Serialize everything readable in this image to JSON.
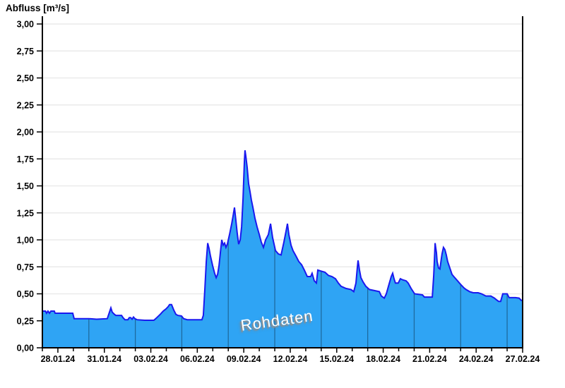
{
  "chart_data": {
    "type": "area",
    "title": "Abfluss [m³/s]",
    "ylabel": "Abfluss [m³/s]",
    "watermark": "Rohdaten",
    "grid": true,
    "legend_position": "none",
    "ylim": [
      0.0,
      3.0
    ],
    "ytick_step": 0.25,
    "y_tick_labels": [
      "0,00",
      "0,25",
      "0,50",
      "0,75",
      "1,00",
      "1,25",
      "1,50",
      "1,75",
      "2,00",
      "2,25",
      "2,50",
      "2,75",
      "3,00"
    ],
    "x_axis": {
      "start_date": "27.01.24",
      "end_date": "27.02.24",
      "span_days": 31,
      "minor_tick_every_days": 1,
      "labels": [
        {
          "day": 1,
          "label": "28.01.24"
        },
        {
          "day": 4,
          "label": "31.01.24"
        },
        {
          "day": 7,
          "label": "03.02.24"
        },
        {
          "day": 10,
          "label": "06.02.24"
        },
        {
          "day": 13,
          "label": "09.02.24"
        },
        {
          "day": 16,
          "label": "12.02.24"
        },
        {
          "day": 19,
          "label": "15.02.24"
        },
        {
          "day": 22,
          "label": "18.02.24"
        },
        {
          "day": 25,
          "label": "21.02.24"
        },
        {
          "day": 28,
          "label": "24.02.24"
        },
        {
          "day": 31,
          "label": "27.02.24"
        }
      ],
      "vertical_gridline_days": [
        3,
        6,
        9,
        12,
        15,
        18,
        21,
        24,
        27,
        30
      ]
    },
    "series": [
      {
        "name": "Rohdaten",
        "unit": "m³/s",
        "points": [
          [
            0,
            0.34
          ],
          [
            0.2,
            0.34
          ],
          [
            0.27,
            0.32
          ],
          [
            0.36,
            0.34
          ],
          [
            0.46,
            0.32
          ],
          [
            0.55,
            0.34
          ],
          [
            0.77,
            0.34
          ],
          [
            0.82,
            0.32
          ],
          [
            1.4,
            0.32
          ],
          [
            1.96,
            0.32
          ],
          [
            2.05,
            0.27
          ],
          [
            3.0,
            0.27
          ],
          [
            3.5,
            0.265
          ],
          [
            4.19,
            0.27
          ],
          [
            4.33,
            0.33
          ],
          [
            4.42,
            0.37
          ],
          [
            4.51,
            0.33
          ],
          [
            4.65,
            0.31
          ],
          [
            4.74,
            0.3
          ],
          [
            5.11,
            0.3
          ],
          [
            5.2,
            0.28
          ],
          [
            5.33,
            0.26
          ],
          [
            5.52,
            0.26
          ],
          [
            5.61,
            0.28
          ],
          [
            5.7,
            0.28
          ],
          [
            5.79,
            0.265
          ],
          [
            5.88,
            0.285
          ],
          [
            5.97,
            0.27
          ],
          [
            6.11,
            0.26
          ],
          [
            6.6,
            0.255
          ],
          [
            7.2,
            0.255
          ],
          [
            7.39,
            0.28
          ],
          [
            7.61,
            0.31
          ],
          [
            7.8,
            0.34
          ],
          [
            7.98,
            0.36
          ],
          [
            8.11,
            0.38
          ],
          [
            8.21,
            0.4
          ],
          [
            8.34,
            0.4
          ],
          [
            8.48,
            0.35
          ],
          [
            8.62,
            0.31
          ],
          [
            8.75,
            0.3
          ],
          [
            8.98,
            0.295
          ],
          [
            9.12,
            0.27
          ],
          [
            9.35,
            0.26
          ],
          [
            9.9,
            0.26
          ],
          [
            10.3,
            0.26
          ],
          [
            10.39,
            0.3
          ],
          [
            10.49,
            0.55
          ],
          [
            10.58,
            0.8
          ],
          [
            10.67,
            0.97
          ],
          [
            10.76,
            0.92
          ],
          [
            10.85,
            0.85
          ],
          [
            10.99,
            0.76
          ],
          [
            11.12,
            0.69
          ],
          [
            11.22,
            0.65
          ],
          [
            11.31,
            0.68
          ],
          [
            11.4,
            0.76
          ],
          [
            11.49,
            0.88
          ],
          [
            11.58,
            1.0
          ],
          [
            11.67,
            0.95
          ],
          [
            11.76,
            0.97
          ],
          [
            11.85,
            0.93
          ],
          [
            11.94,
            0.96
          ],
          [
            12.08,
            1.05
          ],
          [
            12.22,
            1.15
          ],
          [
            12.31,
            1.22
          ],
          [
            12.4,
            1.3
          ],
          [
            12.49,
            1.18
          ],
          [
            12.58,
            1.06
          ],
          [
            12.67,
            0.96
          ],
          [
            12.77,
            1.0
          ],
          [
            12.86,
            1.12
          ],
          [
            12.95,
            1.38
          ],
          [
            13.04,
            1.72
          ],
          [
            13.08,
            1.83
          ],
          [
            13.13,
            1.78
          ],
          [
            13.22,
            1.67
          ],
          [
            13.31,
            1.52
          ],
          [
            13.4,
            1.45
          ],
          [
            13.49,
            1.37
          ],
          [
            13.59,
            1.3
          ],
          [
            13.72,
            1.2
          ],
          [
            13.86,
            1.12
          ],
          [
            14.0,
            1.05
          ],
          [
            14.13,
            0.98
          ],
          [
            14.27,
            0.93
          ],
          [
            14.41,
            1.0
          ],
          [
            14.59,
            1.05
          ],
          [
            14.73,
            1.15
          ],
          [
            14.86,
            1.02
          ],
          [
            15.05,
            0.9
          ],
          [
            15.23,
            0.87
          ],
          [
            15.41,
            0.86
          ],
          [
            15.59,
            0.98
          ],
          [
            15.73,
            1.08
          ],
          [
            15.82,
            1.15
          ],
          [
            15.91,
            1.05
          ],
          [
            16.05,
            0.95
          ],
          [
            16.18,
            0.9
          ],
          [
            16.37,
            0.85
          ],
          [
            16.55,
            0.8
          ],
          [
            16.73,
            0.77
          ],
          [
            16.91,
            0.72
          ],
          [
            17.1,
            0.66
          ],
          [
            17.32,
            0.66
          ],
          [
            17.41,
            0.69
          ],
          [
            17.55,
            0.62
          ],
          [
            17.69,
            0.6
          ],
          [
            17.78,
            0.72
          ],
          [
            18.01,
            0.71
          ],
          [
            18.24,
            0.7
          ],
          [
            18.47,
            0.67
          ],
          [
            18.69,
            0.66
          ],
          [
            18.92,
            0.64
          ],
          [
            19.1,
            0.6
          ],
          [
            19.28,
            0.57
          ],
          [
            19.6,
            0.55
          ],
          [
            19.92,
            0.54
          ],
          [
            20.1,
            0.52
          ],
          [
            20.24,
            0.6
          ],
          [
            20.33,
            0.74
          ],
          [
            20.38,
            0.81
          ],
          [
            20.47,
            0.72
          ],
          [
            20.56,
            0.65
          ],
          [
            20.7,
            0.61
          ],
          [
            20.88,
            0.57
          ],
          [
            21.11,
            0.54
          ],
          [
            21.43,
            0.53
          ],
          [
            21.75,
            0.52
          ],
          [
            21.88,
            0.48
          ],
          [
            22.07,
            0.46
          ],
          [
            22.2,
            0.5
          ],
          [
            22.38,
            0.59
          ],
          [
            22.52,
            0.66
          ],
          [
            22.61,
            0.69
          ],
          [
            22.7,
            0.64
          ],
          [
            22.79,
            0.6
          ],
          [
            22.97,
            0.6
          ],
          [
            23.11,
            0.64
          ],
          [
            23.25,
            0.63
          ],
          [
            23.48,
            0.62
          ],
          [
            23.61,
            0.6
          ],
          [
            23.8,
            0.55
          ],
          [
            24.03,
            0.5
          ],
          [
            24.53,
            0.49
          ],
          [
            24.66,
            0.47
          ],
          [
            25.17,
            0.47
          ],
          [
            25.26,
            0.67
          ],
          [
            25.3,
            0.8
          ],
          [
            25.35,
            0.97
          ],
          [
            25.39,
            0.93
          ],
          [
            25.44,
            0.88
          ],
          [
            25.48,
            0.8
          ],
          [
            25.57,
            0.74
          ],
          [
            25.66,
            0.73
          ],
          [
            25.75,
            0.82
          ],
          [
            25.8,
            0.87
          ],
          [
            25.89,
            0.93
          ],
          [
            25.98,
            0.91
          ],
          [
            26.07,
            0.86
          ],
          [
            26.16,
            0.8
          ],
          [
            26.3,
            0.74
          ],
          [
            26.44,
            0.68
          ],
          [
            26.62,
            0.65
          ],
          [
            26.8,
            0.62
          ],
          [
            26.98,
            0.59
          ],
          [
            27.21,
            0.555
          ],
          [
            27.35,
            0.54
          ],
          [
            27.58,
            0.52
          ],
          [
            27.81,
            0.51
          ],
          [
            28.13,
            0.51
          ],
          [
            28.35,
            0.5
          ],
          [
            28.63,
            0.48
          ],
          [
            28.95,
            0.48
          ],
          [
            29.18,
            0.46
          ],
          [
            29.31,
            0.445
          ],
          [
            29.45,
            0.43
          ],
          [
            29.58,
            0.43
          ],
          [
            29.72,
            0.5
          ],
          [
            30.0,
            0.5
          ],
          [
            30.13,
            0.465
          ],
          [
            30.54,
            0.465
          ],
          [
            30.77,
            0.46
          ],
          [
            30.91,
            0.44
          ],
          [
            31.0,
            0.44
          ]
        ]
      }
    ],
    "colors": {
      "fill": "#2fa4f4",
      "line": "#1a18ef",
      "h_gridline": "#eaeaea",
      "v_gridline_over_fill": "rgba(0,0,0,0.35)",
      "axis": "#000000",
      "background": "#ffffff",
      "watermark_text": "#ffffff",
      "watermark_shadow": "#8e8e8e"
    }
  }
}
